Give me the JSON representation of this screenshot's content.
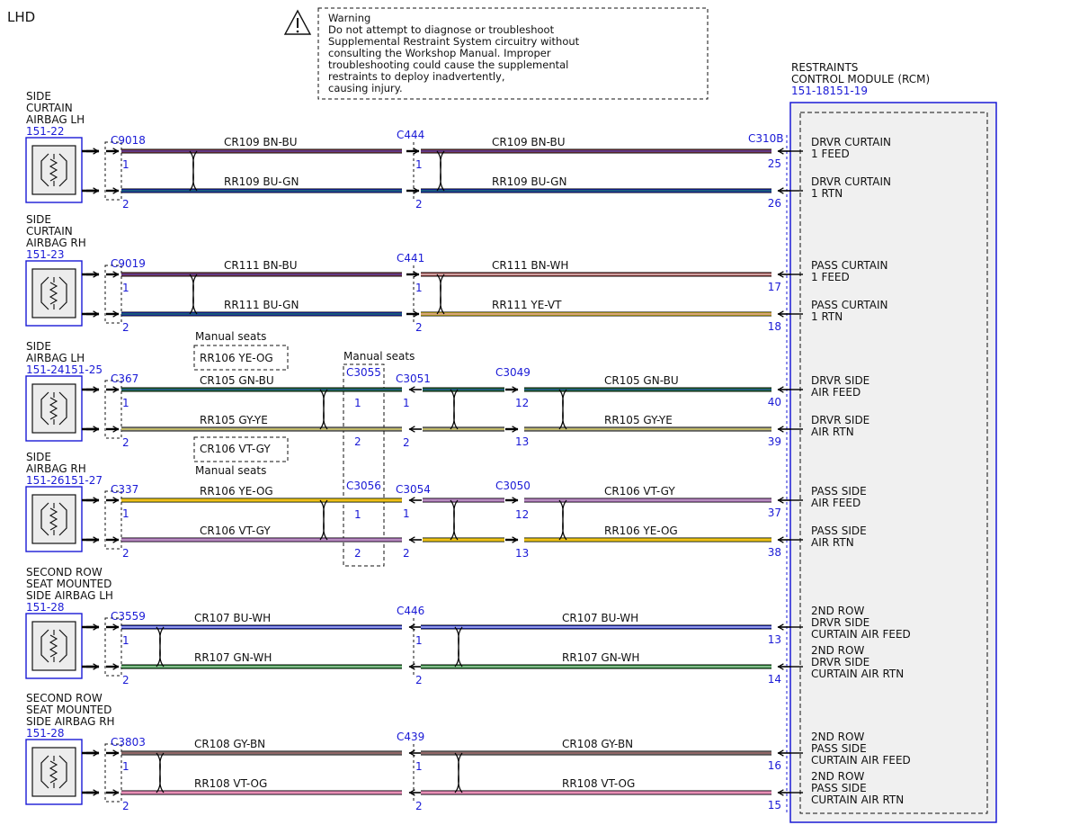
{
  "title": "LHD",
  "warning": {
    "lines": [
      "Warning",
      "Do not attempt to diagnose or troubleshoot",
      "Supplemental Restraint System circuitry without",
      "consulting the Workshop Manual. Improper",
      "troubleshooting could cause the supplemental",
      "restraints to deploy inadvertently,",
      "causing injury."
    ]
  },
  "module": {
    "name_lines": [
      "RESTRAINTS",
      "CONTROL MODULE (RCM)"
    ],
    "ref": "151-18151-19",
    "connector": "C310B"
  },
  "devices": [
    {
      "name_lines": [
        "SIDE",
        "CURTAIN",
        "AIRBAG LH"
      ],
      "ref": "151-22"
    },
    {
      "name_lines": [
        "SIDE",
        "CURTAIN",
        "AIRBAG RH"
      ],
      "ref": "151-23"
    },
    {
      "name_lines": [
        "SIDE",
        "AIRBAG LH"
      ],
      "ref": "151-24151-25"
    },
    {
      "name_lines": [
        "SIDE",
        "AIRBAG RH"
      ],
      "ref": "151-26151-27"
    },
    {
      "name_lines": [
        "SECOND ROW",
        "SEAT MOUNTED",
        "SIDE AIRBAG LH"
      ],
      "ref": "151-28"
    },
    {
      "name_lines": [
        "SECOND ROW",
        "SEAT MOUNTED",
        "SIDE AIRBAG RH"
      ],
      "ref": "151-28"
    }
  ],
  "connectors": {
    "dev": [
      "C9018",
      "C9019",
      "C367",
      "C337",
      "C3559",
      "C3803"
    ],
    "mid": [
      "C444",
      "C441",
      "C3051",
      "C3054",
      "C446",
      "C439"
    ],
    "c3055": "C3055",
    "c3056": "C3056",
    "c3049": "C3049",
    "c3050": "C3050"
  },
  "circuits": {
    "w1": [
      "CR109  BN-BU",
      "CR109  BN-BU"
    ],
    "w2": [
      "RR109  BU-GN",
      "RR109  BU-GN"
    ],
    "w3": [
      "CR111  BN-BU",
      "CR111  BN-WH"
    ],
    "w4": [
      "RR111  BU-GN",
      "RR111  YE-VT"
    ],
    "w5": [
      "CR105  GN-BU",
      "CR105  GN-BU"
    ],
    "w6": [
      "RR105  GY-YE",
      "RR105  GY-YE"
    ],
    "w7": [
      "RR106  YE-OG",
      "CR106  VT-GY"
    ],
    "w8": [
      "CR106  VT-GY",
      "RR106  YE-OG"
    ],
    "w9": [
      "CR107  BU-WH",
      "CR107  BU-WH"
    ],
    "w10": [
      "RR107  GN-WH",
      "RR107  GN-WH"
    ],
    "w11": [
      "CR108  GY-BN",
      "CR108  GY-BN"
    ],
    "w12": [
      "RR108  VT-OG",
      "RR108  VT-OG"
    ]
  },
  "manual_seats": {
    "label": "Manual seats",
    "opt1": "RR106  YE-OG",
    "opt2": "CR106  VT-GY"
  },
  "pins": {
    "one": "1",
    "two": "2",
    "twelve": "12",
    "thirteen": "13",
    "rcm": [
      "25",
      "26",
      "17",
      "18",
      "40",
      "39",
      "37",
      "38",
      "13",
      "14",
      "16",
      "15"
    ]
  },
  "rcm_labels": [
    [
      "DRVR CURTAIN",
      "1 FEED"
    ],
    [
      "DRVR CURTAIN",
      "1 RTN"
    ],
    [
      "PASS CURTAIN",
      "1 FEED"
    ],
    [
      "PASS CURTAIN",
      "1 RTN"
    ],
    [
      "DRVR SIDE",
      "AIR FEED"
    ],
    [
      "DRVR SIDE",
      "AIR RTN"
    ],
    [
      "PASS SIDE",
      "AIR FEED"
    ],
    [
      "PASS SIDE",
      "AIR RTN"
    ],
    [
      "2ND ROW",
      "DRVR SIDE",
      "CURTAIN AIR FEED"
    ],
    [
      "2ND ROW",
      "DRVR SIDE",
      "CURTAIN AIR RTN"
    ],
    [
      "2ND ROW",
      "PASS SIDE",
      "CURTAIN AIR FEED"
    ],
    [
      "2ND ROW",
      "PASS SIDE",
      "CURTAIN AIR RTN"
    ]
  ],
  "colors": {
    "BN-BU": {
      "base": "#8a3a45",
      "stripe": "#3a3ac8"
    },
    "BU-GN": {
      "base": "#1a2ad0",
      "stripe": "#1a8a2a"
    },
    "BN-WH": {
      "base": "#a04040",
      "stripe": "#ffffff"
    },
    "YE-VT": {
      "base": "#f2d820",
      "stripe": "#c070d0"
    },
    "GN-BU": {
      "base": "#1f7a28",
      "stripe": "#2a3ad0"
    },
    "GY-YE": {
      "base": "#9a9a90",
      "stripe": "#e8d840"
    },
    "YE-OG": {
      "base": "#f4dc10",
      "stripe": "#f0a020"
    },
    "VT-GY": {
      "base": "#c07ad0",
      "stripe": "#b0a0b0"
    },
    "BU-WH": {
      "base": "#2030d8",
      "stripe": "#ffffff"
    },
    "GN-WH": {
      "base": "#208a30",
      "stripe": "#e8f0e8"
    },
    "GY-BN": {
      "base": "#8a8080",
      "stripe": "#9a5050"
    },
    "VT-OG": {
      "base": "#e080b8",
      "stripe": "#f0a0b0"
    },
    "connector_blue": "#1a1ad6"
  }
}
